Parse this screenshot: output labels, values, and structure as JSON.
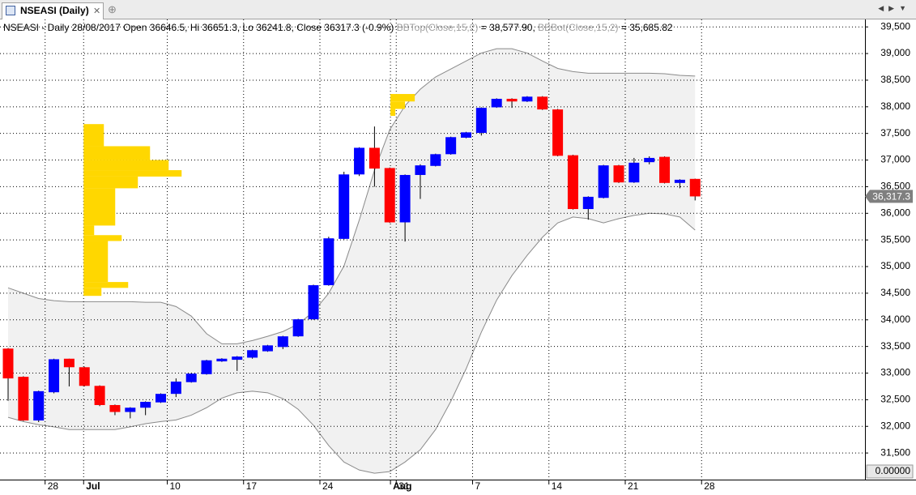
{
  "tab": {
    "title": "NSEASI (Daily)"
  },
  "chart_data": {
    "type": "candlestick",
    "title": "NSEASI - Daily 28/08/2017 Open 36646.5, Hi 36651.3, Lo 36241.8, Close 36317.3 (-0.9%)",
    "categories": [
      null,
      null,
      "28",
      null,
      null,
      "Jul",
      null,
      null,
      null,
      null,
      "10",
      null,
      null,
      null,
      null,
      "17",
      null,
      null,
      null,
      null,
      "24",
      null,
      null,
      null,
      null,
      "31",
      "Aug",
      null,
      null,
      null,
      "7",
      null,
      null,
      null,
      null,
      "14",
      null,
      null,
      null,
      null,
      "21",
      null,
      null,
      null,
      null,
      "28"
    ],
    "open": [
      33460,
      32930,
      32110,
      32640,
      33270,
      33110,
      32760,
      32400,
      32270,
      32350,
      32450,
      32610,
      32830,
      32980,
      33220,
      33250,
      33290,
      33410,
      33490,
      33690,
      34010,
      34650,
      35520,
      36730,
      37230,
      36850,
      35830,
      36720,
      36890,
      37110,
      37420,
      37510,
      37990,
      38150,
      38100,
      38190,
      37950,
      37090,
      36080,
      36290,
      36900,
      36580,
      36960,
      37060,
      36570,
      36646.5
    ],
    "high": [
      33470,
      32940,
      32670,
      33270,
      33270,
      33120,
      32770,
      32410,
      32360,
      32470,
      32620,
      32900,
      33000,
      33250,
      33280,
      33320,
      33440,
      33530,
      33700,
      34020,
      34660,
      35560,
      36780,
      37240,
      37630,
      36860,
      36730,
      36920,
      37120,
      37440,
      37530,
      37990,
      38160,
      38160,
      38200,
      38200,
      37960,
      37100,
      36320,
      36910,
      36910,
      37040,
      37070,
      37070,
      36640,
      36651.3
    ],
    "low": [
      32480,
      32100,
      32080,
      32620,
      32750,
      32750,
      32380,
      32210,
      32150,
      32210,
      32440,
      32550,
      32820,
      32970,
      33210,
      33040,
      33270,
      33400,
      33450,
      33680,
      34000,
      34640,
      35510,
      36700,
      36500,
      35820,
      35470,
      36270,
      36880,
      37100,
      37410,
      37460,
      37980,
      37980,
      38090,
      37940,
      37070,
      36070,
      35880,
      36280,
      36570,
      36570,
      36920,
      36560,
      36470,
      36241.8
    ],
    "close": [
      32900,
      32110,
      32660,
      33260,
      33110,
      32760,
      32400,
      32270,
      32350,
      32460,
      32610,
      32840,
      32990,
      33240,
      33270,
      33310,
      33430,
      33520,
      33690,
      34010,
      34650,
      35530,
      36730,
      37230,
      36840,
      35830,
      36720,
      36900,
      37110,
      37430,
      37520,
      37980,
      38150,
      38100,
      38190,
      37950,
      37080,
      36080,
      36310,
      36900,
      36580,
      36950,
      37040,
      36570,
      36630,
      36317.3
    ],
    "up_color": "#0000ff",
    "down_color": "#ff0000",
    "bands": [
      {
        "name": "BBTop(Close,15,2)",
        "readout": " = 38,577.90, ",
        "values": [
          34600,
          34500,
          34400,
          34360,
          34340,
          34340,
          34340,
          34340,
          34340,
          34330,
          34330,
          34250,
          34070,
          33740,
          33550,
          33550,
          33610,
          33690,
          33780,
          33920,
          34150,
          34500,
          35010,
          35870,
          36810,
          37570,
          38020,
          38330,
          38560,
          38710,
          38860,
          39010,
          39090,
          39090,
          39010,
          38860,
          38720,
          38660,
          38630,
          38630,
          38630,
          38630,
          38630,
          38620,
          38590,
          38577.9
        ]
      },
      {
        "name": "BBBot(Close,15,2)",
        "readout": " = 35,685.82",
        "values": [
          32170,
          32090,
          32030,
          31990,
          31940,
          31940,
          31940,
          31940,
          31990,
          32050,
          32090,
          32120,
          32210,
          32350,
          32530,
          32630,
          32660,
          32630,
          32520,
          32320,
          32020,
          31640,
          31330,
          31180,
          31120,
          31150,
          31330,
          31560,
          31940,
          32470,
          33080,
          33770,
          34370,
          34830,
          35210,
          35550,
          35820,
          35930,
          35900,
          35820,
          35900,
          35960,
          36000,
          35990,
          35930,
          35685.82
        ]
      }
    ],
    "band_fill": "#f1f1f1",
    "band_line": "#8a8a8a",
    "profiles": [
      {
        "color": "#ffd700",
        "levels": [
          37675,
          37260,
          37000,
          36810,
          36690,
          36470,
          35770,
          35590,
          35480,
          34710,
          34600,
          34450
        ],
        "volumes": [
          25,
          82,
          105,
          121,
          67,
          39,
          13,
          47,
          30,
          55,
          22
        ]
      },
      {
        "color": "#ffd700",
        "levels": [
          38240,
          38100,
          37960,
          37830
        ],
        "volumes": [
          30,
          18,
          6
        ]
      }
    ],
    "ylim": [
      31000,
      39640
    ],
    "yticks": [
      {
        "value": 31500,
        "label": "31,500"
      },
      {
        "value": 32000,
        "label": "32,000"
      },
      {
        "value": 32500,
        "label": "32,500"
      },
      {
        "value": 33000,
        "label": "33,000"
      },
      {
        "value": 33500,
        "label": "33,500"
      },
      {
        "value": 34000,
        "label": "34,000"
      },
      {
        "value": 34500,
        "label": "34,500"
      },
      {
        "value": 35000,
        "label": "35,000"
      },
      {
        "value": 35500,
        "label": "35,500"
      },
      {
        "value": 36000,
        "label": "36,000"
      },
      {
        "value": 36500,
        "label": "36,500"
      },
      {
        "value": 37000,
        "label": "37,000"
      },
      {
        "value": 37500,
        "label": "37,500"
      },
      {
        "value": 38000,
        "label": "38,000"
      },
      {
        "value": 38500,
        "label": "38,500"
      },
      {
        "value": 39000,
        "label": "39,000"
      },
      {
        "value": 39500,
        "label": "39,500"
      }
    ],
    "grid": true,
    "last_price_label": "36,317.3",
    "volume_readout": "0.00000"
  }
}
